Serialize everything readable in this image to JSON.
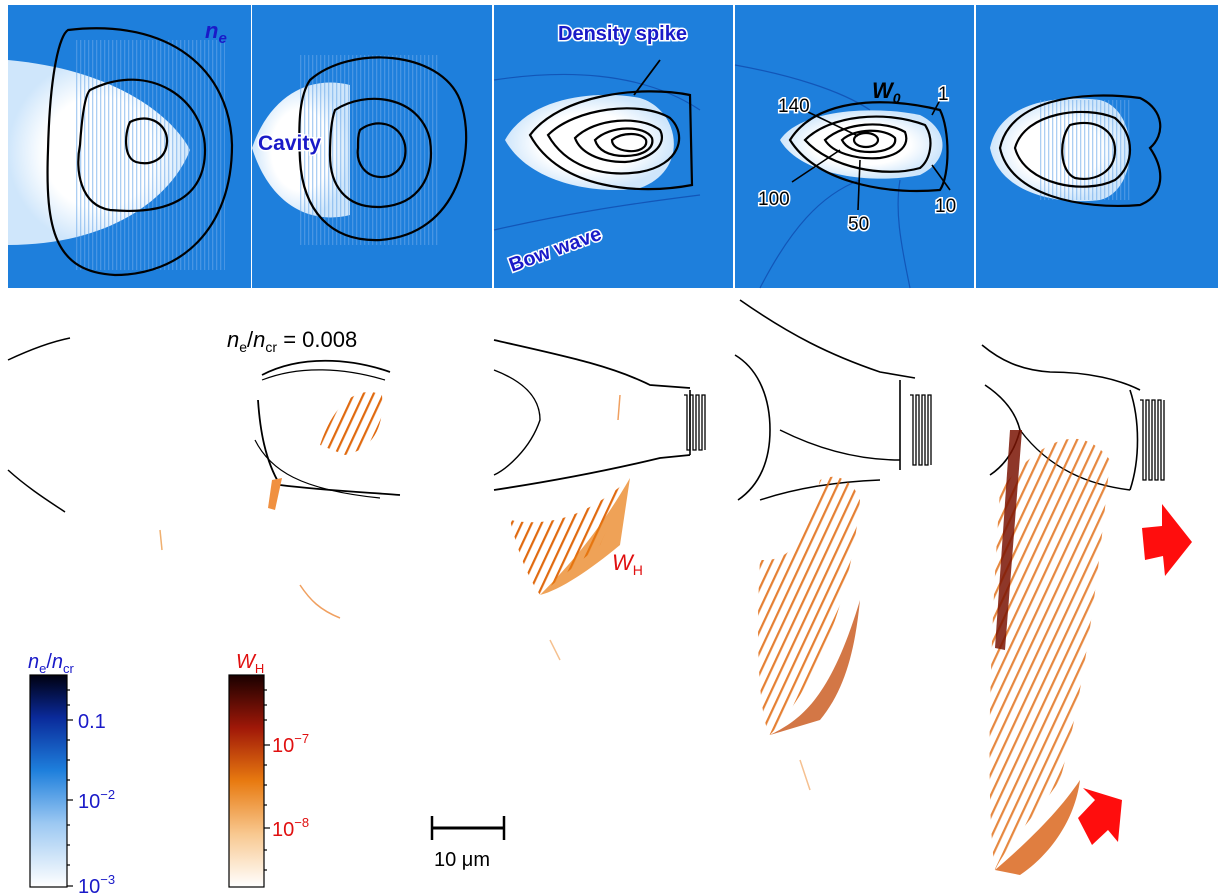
{
  "top_row": {
    "ne_label": {
      "n": "n",
      "sub": "e"
    },
    "density_spike": "Density spike",
    "cavity": "Cavity",
    "bow_wave": "Bow wave",
    "w0_label": {
      "main": "W",
      "sub": "0"
    },
    "contour_labels": [
      "1",
      "10",
      "50",
      "100",
      "140"
    ]
  },
  "bottom_row": {
    "threshold": {
      "n1": "n",
      "sub1": "e",
      "slash": "/",
      "n2": "n",
      "sub2": "cr",
      "value": " = 0.008"
    },
    "wh_label": {
      "main": "W",
      "sub": "H"
    }
  },
  "colorbars": {
    "ne": {
      "title": {
        "n1": "n",
        "sub1": "e",
        "slash": "/",
        "n2": "n",
        "sub2": "cr"
      },
      "ticks": [
        "0.1",
        "10",
        "−2",
        "10",
        "−3"
      ],
      "color": "#1a1ac8"
    },
    "wh": {
      "title": {
        "main": "W",
        "sub": "H"
      },
      "ticks": [
        "10",
        "−7",
        "10",
        "−8"
      ],
      "color": "#e01010"
    }
  },
  "scale_bar": {
    "label": "10 μm"
  },
  "colors": {
    "plasma_bg": "#1e7fdc",
    "cavity": "#ffffff",
    "label_blue": "#1a1ac8",
    "label_red": "#e01010",
    "arrow": "#ff0d0d"
  }
}
